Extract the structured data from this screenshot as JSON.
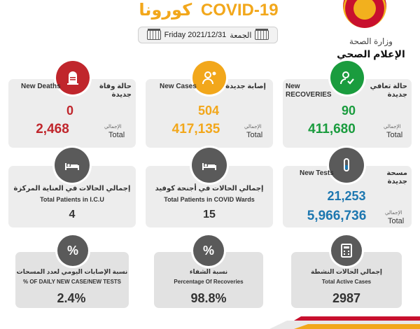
{
  "header": {
    "title_ar": "كورونا",
    "title_en": "COVID-19",
    "date": "Friday 2021/12/31",
    "day_ar": "الجمعة",
    "ministry_ar": "وزارة الصحة",
    "media_ar": "الإعلام الصحي"
  },
  "deaths": {
    "label_ar": "حالة وفاة جديدة",
    "label_en": "New Deaths",
    "value": "0",
    "total": "2,468",
    "total_ar": "الإجمالي",
    "total_en": "Total",
    "color": "#c0262c"
  },
  "cases": {
    "label_ar": "إصابة جديدة",
    "label_en": "New Cases",
    "value": "504",
    "total": "417,135",
    "total_ar": "الإجمالي",
    "total_en": "Total",
    "color": "#f2a71b"
  },
  "recoveries": {
    "label_ar": "حالة تعافي جديدة",
    "label_en": "New RECOVERIES",
    "value": "90",
    "total": "411,680",
    "total_ar": "الإجمالي",
    "total_en": "Total",
    "color": "#1a9c3e"
  },
  "icu": {
    "label_ar": "إجمالي الحالات في العناية المركزة",
    "label_en": "Total Patients in I.C.U",
    "value": "4"
  },
  "wards": {
    "label_ar": "إجمالي الحالات في أجنحة كوفيد",
    "label_en": "Total Patients in COVID  Wards",
    "value": "15"
  },
  "tests": {
    "label_ar": "مسحة جديدة",
    "label_en": "New Tests",
    "value": "21,253",
    "total": "5,966,736",
    "total_ar": "الإجمالي",
    "total_en": "Total",
    "color": "#1d77b0"
  },
  "daily_pct": {
    "label_ar": "نسبة الإصابات اليومي لعدد المسحات",
    "label_en": "% OF DAILY NEW CASE/NEW TESTS",
    "value": "2.4%"
  },
  "recovery_pct": {
    "label_ar": "نسبة الشفاء",
    "label_en": "Percentage Of Recoveries",
    "value": "98.8%"
  },
  "active": {
    "label_ar": "إجمالي الحالات النشطة",
    "label_en": "Total Active Cases",
    "value": "2987"
  },
  "icons": {
    "deaths": "tombstone-icon",
    "cases": "virus-person-icon",
    "recoveries": "recovered-person-icon",
    "icu": "hospital-bed-icon",
    "wards": "hospital-bed-icon",
    "tests": "test-tube-icon",
    "daily_pct": "percent-icon",
    "recovery_pct": "percent-icon",
    "active": "calculator-icon"
  },
  "colors": {
    "gray_icon": "#5a5a5a",
    "accent": "#f2a71b"
  }
}
